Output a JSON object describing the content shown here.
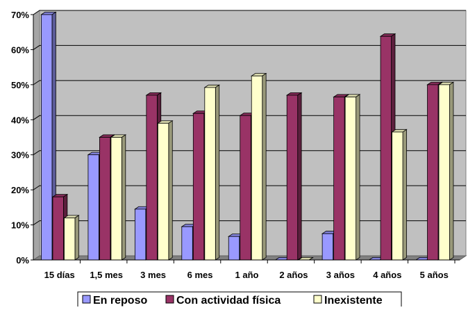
{
  "chart_data": {
    "type": "bar",
    "categories": [
      "15 días",
      "1,5 mes",
      "3 mes",
      "6 mes",
      "1 año",
      "2 años",
      "3 años",
      "4 años",
      "5 años"
    ],
    "series": [
      {
        "name": "En reposo",
        "values": [
          70,
          30,
          14.5,
          9.5,
          6.7,
          0,
          7.5,
          0,
          0
        ],
        "color": "#9999ff"
      },
      {
        "name": "Con actividad física",
        "values": [
          18,
          35,
          47,
          41.8,
          41.2,
          47,
          46.5,
          63.8,
          50
        ],
        "color": "#993366"
      },
      {
        "name": "Inexistente",
        "values": [
          12,
          35,
          39,
          49.2,
          52.5,
          0,
          46.5,
          36.5,
          50
        ],
        "color": "#ffffcc"
      }
    ],
    "y_ticks": [
      "0%",
      "10%",
      "20%",
      "30%",
      "40%",
      "50%",
      "60%",
      "70%"
    ],
    "ylim": [
      0,
      70
    ],
    "grid": true,
    "legend_position": "bottom",
    "wall_color": "#c0c0c0",
    "floor_color": "#808080"
  }
}
